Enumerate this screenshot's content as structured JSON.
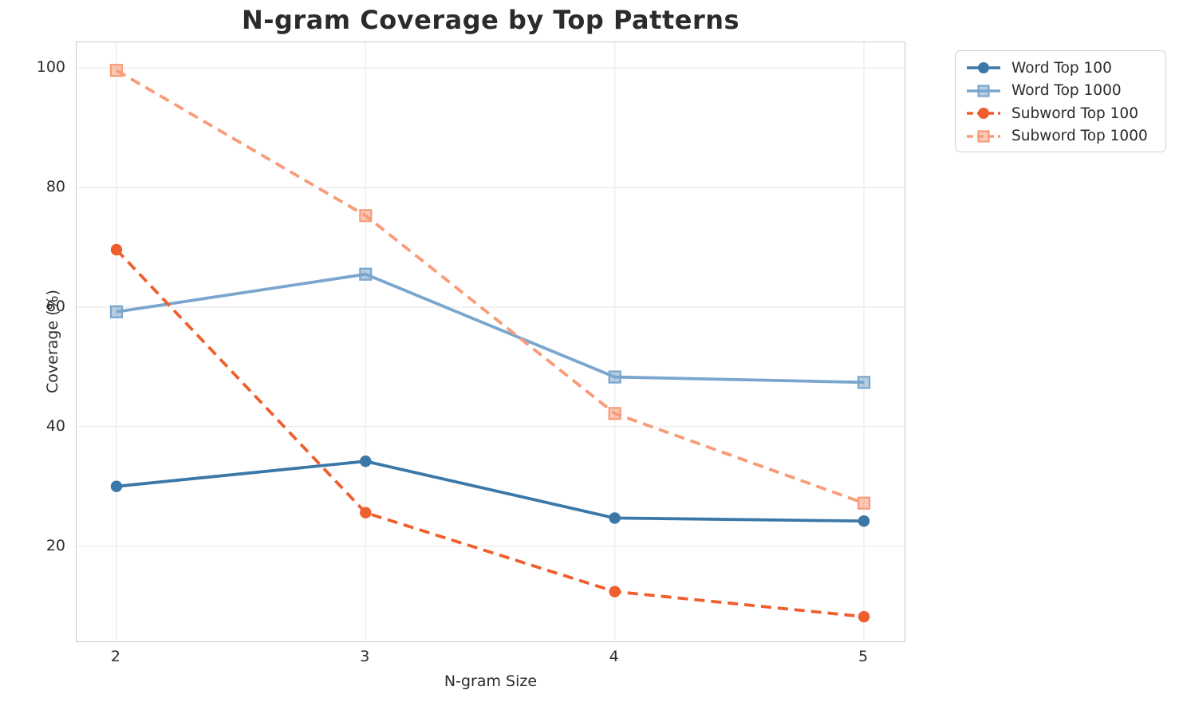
{
  "chart_data": {
    "type": "line",
    "title": "N-gram Coverage by Top Patterns",
    "xlabel": "N-gram Size",
    "ylabel": "Coverage (%)",
    "x": [
      2,
      3,
      4,
      5
    ],
    "xtick_labels": [
      "2",
      "3",
      "4",
      "5"
    ],
    "yticks": [
      20,
      40,
      60,
      80,
      100
    ],
    "xlim": [
      1.84,
      5.16
    ],
    "ylim": [
      4.2,
      104.3
    ],
    "grid": true,
    "grid_color": "#ececec",
    "spine_color": "#cbcbcb",
    "text_color": "#2b2b2b",
    "legend_position": "outside-upper-right",
    "series": [
      {
        "name": "Word Top 100",
        "color": "#3b78a8",
        "marker": "circle",
        "line_style": "solid",
        "values": [
          30.0,
          34.2,
          24.7,
          24.2
        ]
      },
      {
        "name": "Word Top 1000",
        "color": "#7aa6ce",
        "marker": "square",
        "line_style": "solid",
        "values": [
          59.2,
          65.5,
          48.3,
          47.4
        ]
      },
      {
        "name": "Subword Top 100",
        "color": "#ee5f2d",
        "marker": "circle",
        "line_style": "dashed",
        "values": [
          69.6,
          25.6,
          12.4,
          8.2
        ]
      },
      {
        "name": "Subword Top 1000",
        "color": "#f89b78",
        "marker": "square",
        "line_style": "dashed",
        "values": [
          99.6,
          75.3,
          42.2,
          27.2
        ]
      }
    ]
  }
}
